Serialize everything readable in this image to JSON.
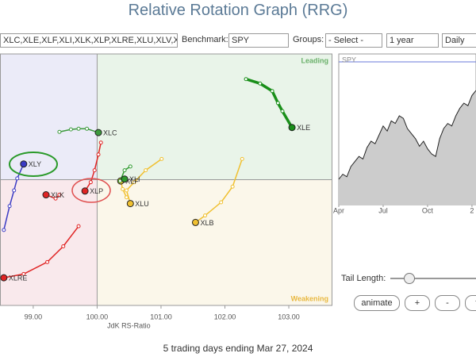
{
  "header": {
    "title": "Relative Rotation Graph (RRG)"
  },
  "controls": {
    "symbols": "XLC,XLE,XLF,XLI,XLK,XLP,XLRE,XLU,XLV,XL",
    "benchmark_label": "Benchmark:",
    "benchmark": "SPY",
    "groups_label": "Groups:",
    "groups": "- Select -",
    "period": "1 year",
    "interval": "Daily",
    "tail_length_label": "Tail Length:",
    "buttons": [
      "animate",
      "+",
      "-",
      "fi"
    ]
  },
  "footer": "5 trading days ending Mar 27, 2024",
  "chart_data": [
    {
      "type": "scatter",
      "x_label": "JdK RS-Ratio",
      "quadrants": [
        "Leading",
        "Weakening"
      ],
      "xlim": [
        98.48,
        103.67
      ],
      "ylim": [
        98,
        102
      ],
      "xticks": [
        {
          "value": 99,
          "label": "99.00"
        },
        {
          "value": 100,
          "label": "100.00"
        },
        {
          "value": 101,
          "label": "101.00"
        },
        {
          "value": 102,
          "label": "102.00"
        },
        {
          "value": 103,
          "label": "103.00"
        }
      ],
      "series": [
        {
          "name": "XLE",
          "color": "#1a8f1a",
          "x": [
            102.33,
            102.55,
            102.74,
            102.83,
            102.9,
            103.05
          ],
          "values": [
            101.6,
            101.53,
            101.41,
            101.22,
            101.09,
            100.83
          ]
        },
        {
          "name": "XLC",
          "color": "#3c9a3c",
          "x": [
            99.41,
            99.59,
            99.71,
            99.84,
            100.02
          ],
          "values": [
            100.76,
            100.8,
            100.81,
            100.81,
            100.75
          ]
        },
        {
          "name": "XLY",
          "color": "#3b3bc4",
          "x": [
            98.54,
            98.63,
            98.7,
            98.75,
            98.85
          ],
          "values": [
            99.2,
            99.58,
            99.83,
            100.02,
            100.25
          ]
        },
        {
          "name": "XLP",
          "color": "#e02424",
          "x": [
            100.06,
            100.02,
            99.96,
            99.9,
            99.81
          ],
          "values": [
            100.59,
            100.4,
            100.15,
            99.96,
            99.82
          ]
        },
        {
          "name": "XLRE",
          "color": "#e02424",
          "x": [
            99.71,
            99.47,
            99.22,
            98.85,
            98.54
          ],
          "values": [
            99.26,
            98.94,
            98.69,
            98.5,
            98.44
          ]
        },
        {
          "name": "XLK",
          "color": "#e02424",
          "x": [
            99.41,
            99.35,
            99.2
          ],
          "values": [
            99.76,
            99.7,
            99.76
          ]
        },
        {
          "name": "XLB",
          "color": "#f0c030",
          "x": [
            102.27,
            102.12,
            101.94,
            101.69,
            101.54
          ],
          "values": [
            100.33,
            99.89,
            99.64,
            99.43,
            99.32
          ]
        },
        {
          "name": "XLU",
          "color": "#f0c030",
          "x": [
            101.01,
            100.76,
            100.58,
            100.46,
            100.52
          ],
          "values": [
            100.33,
            100.15,
            99.96,
            99.83,
            99.62
          ]
        },
        {
          "name": "XLF",
          "color": "#f0c030",
          "x": [
            100.46,
            100.4,
            100.37
          ],
          "values": [
            99.72,
            99.85,
            99.98
          ]
        },
        {
          "name": "XLI",
          "color": "#2e9a2e",
          "x": [
            100.52,
            100.43,
            100.36,
            100.43
          ],
          "values": [
            100.21,
            100.15,
            99.98,
            100.01
          ]
        }
      ]
    },
    {
      "type": "line",
      "name": "SPY",
      "color": "#222222",
      "fill": "#cccccc",
      "values": [
        20,
        24,
        22,
        30,
        34,
        38,
        36,
        45,
        50,
        48,
        55,
        62,
        58,
        66,
        64,
        70,
        68,
        60,
        56,
        52,
        46,
        50,
        44,
        40,
        38,
        52,
        60,
        64,
        62,
        70,
        76,
        80,
        78,
        86,
        90
      ],
      "ylim": [
        0,
        100
      ],
      "xlim": [
        0,
        34
      ],
      "xticks": [
        {
          "value": 0,
          "label": "Apr"
        },
        {
          "value": 11,
          "label": "Jul"
        },
        {
          "value": 22,
          "label": "Oct"
        },
        {
          "value": 33,
          "label": "2"
        }
      ]
    }
  ]
}
